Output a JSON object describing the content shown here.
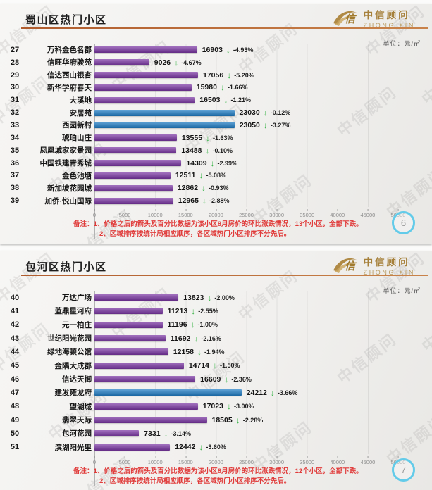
{
  "watermark_text": "中信顾问",
  "brand": {
    "mark": "信",
    "name_cn": "中信顾问",
    "name_en": "ZHONG XIN"
  },
  "colors": {
    "bar_purple": "#7a35a3",
    "bar_blue": "#1f7dc6",
    "arrow_green": "#3cb54a",
    "note_red": "#e03b3a",
    "accent_line": "#b05c2e",
    "gold": "#a6803a",
    "badge_ring": "#63cbe9"
  },
  "glyphs": {
    "down_arrow": "↓"
  },
  "slides": [
    {
      "title": "蜀山区热门小区",
      "unit_label": "单位：元/㎡",
      "page_number": "6",
      "note": {
        "prefix": "备注：",
        "line1": "1、价格之后的箭头及百分比数据为该小区8月房价的环比涨跌情况，",
        "line1_strong": "13个小区，全部下跌。",
        "line2": "2、区域排序按统计局相应顺序，各区域热门小区排序不分先后。"
      },
      "chart_data": {
        "type": "bar",
        "orientation": "horizontal",
        "title": "蜀山区热门小区",
        "unit": "元/㎡",
        "xlim": [
          0,
          50000
        ],
        "x_ticks": [
          0,
          5000,
          10000,
          15000,
          20000,
          25000,
          30000,
          35000,
          40000,
          45000,
          50000
        ],
        "grid": true,
        "ranks": [
          27,
          28,
          29,
          30,
          31,
          32,
          33,
          34,
          35,
          36,
          37,
          38,
          39
        ],
        "categories": [
          "万科金色名郡",
          "信旺华府骏苑",
          "信达西山银杏",
          "新华学府春天",
          "大溪地",
          "安居苑",
          "西园新村",
          "琥珀山庄",
          "凤凰城家家景园",
          "中国铁建青秀城",
          "金色池塘",
          "新加坡花园城",
          "加侨·悦山国际"
        ],
        "values": [
          16903,
          9026,
          17056,
          15980,
          16503,
          23030,
          23050,
          13555,
          13488,
          14309,
          12511,
          12862,
          12965
        ],
        "changes": [
          "-4.93%",
          "-4.67%",
          "-5.20%",
          "-1.66%",
          "-1.21%",
          "-0.12%",
          "-3.27%",
          "-1.63%",
          "-0.10%",
          "-2.99%",
          "-5.08%",
          "-0.93%",
          "-2.88%"
        ],
        "change_direction": "down",
        "bar_colors": [
          "purple",
          "purple",
          "purple",
          "purple",
          "purple",
          "blue",
          "blue",
          "purple",
          "purple",
          "purple",
          "purple",
          "purple",
          "purple"
        ]
      }
    },
    {
      "title": "包河区热门小区",
      "unit_label": "单位：元/㎡",
      "page_number": "7",
      "note": {
        "prefix": "备注：",
        "line1": "1、价格之后的箭头及百分比数据为该小区8月房价的环比涨跌情况，",
        "line1_strong": "12个小区，全部下跌。",
        "line2": "2、区域排序按统计局相应顺序，各区域热门小区排序不分先后。"
      },
      "chart_data": {
        "type": "bar",
        "orientation": "horizontal",
        "title": "包河区热门小区",
        "unit": "元/㎡",
        "xlim": [
          0,
          50000
        ],
        "x_ticks": [
          0,
          5000,
          10000,
          15000,
          20000,
          25000,
          30000,
          35000,
          40000,
          45000,
          50000
        ],
        "grid": true,
        "ranks": [
          40,
          41,
          42,
          43,
          44,
          45,
          46,
          47,
          48,
          49,
          50,
          51
        ],
        "categories": [
          "万达广场",
          "蓝鼎星河府",
          "元一柏庄",
          "世纪阳光花园",
          "绿地海顿公馆",
          "金隅大成郡",
          "信达天御",
          "建发雍龙府",
          "望湖城",
          "翡翠天际",
          "包河花园",
          "滨湖阳光里"
        ],
        "values": [
          13823,
          11213,
          11196,
          11692,
          12158,
          14714,
          16609,
          24212,
          17023,
          18505,
          7331,
          12442
        ],
        "changes": [
          "-2.00%",
          "-2.55%",
          "-1.00%",
          "-2.16%",
          "-1.94%",
          "-1.50%",
          "-2.36%",
          "-3.66%",
          "-3.00%",
          "-2.28%",
          "-3.14%",
          "-3.60%"
        ],
        "change_direction": "down",
        "bar_colors": [
          "purple",
          "purple",
          "purple",
          "purple",
          "purple",
          "purple",
          "purple",
          "blue",
          "purple",
          "purple",
          "purple",
          "purple"
        ]
      }
    }
  ]
}
